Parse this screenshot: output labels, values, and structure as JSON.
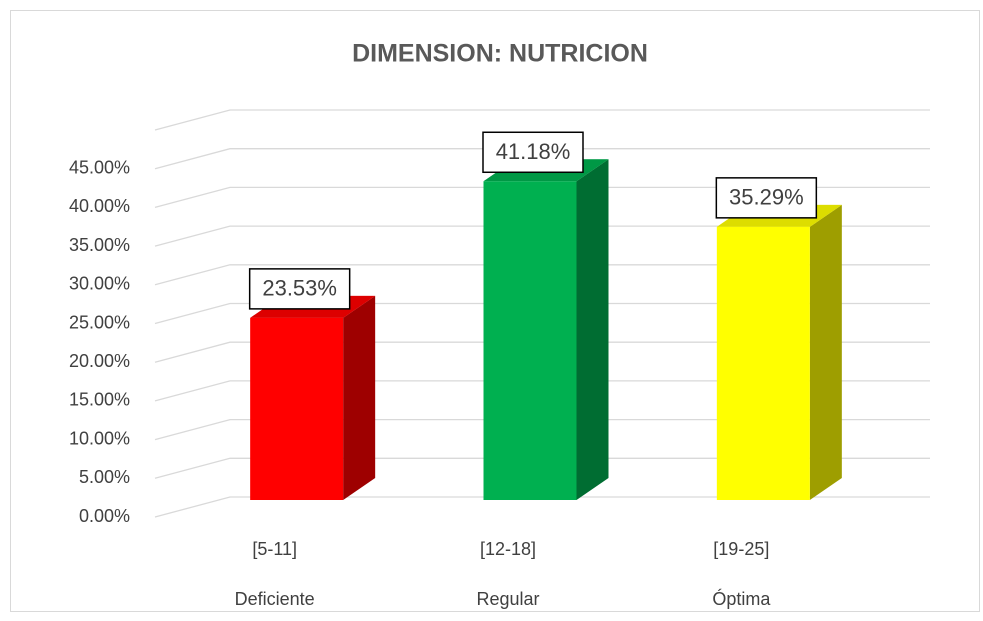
{
  "chart_data": {
    "type": "bar3d",
    "title": "DIMENSION: NUTRICION",
    "categories": [
      [
        "[5-11]",
        "Deficiente"
      ],
      [
        "[12-18]",
        "Regular"
      ],
      [
        "[19-25]",
        "Óptima"
      ]
    ],
    "values": [
      23.53,
      41.18,
      35.29
    ],
    "value_labels": [
      "23.53%",
      "41.18%",
      "35.29%"
    ],
    "colors": [
      "#ff0000",
      "#00b050",
      "#ffff00"
    ],
    "ylim": [
      0,
      50
    ],
    "yticks": [
      {
        "value": 0,
        "label": "0.00%"
      },
      {
        "value": 5,
        "label": "5.00%"
      },
      {
        "value": 10,
        "label": "10.00%"
      },
      {
        "value": 15,
        "label": "15.00%"
      },
      {
        "value": 20,
        "label": "20.00%"
      },
      {
        "value": 25,
        "label": "25.00%"
      },
      {
        "value": 30,
        "label": "30.00%"
      },
      {
        "value": 35,
        "label": "35.00%"
      },
      {
        "value": 40,
        "label": "40.00%"
      },
      {
        "value": 45,
        "label": "45.00%"
      }
    ],
    "grid": true
  }
}
